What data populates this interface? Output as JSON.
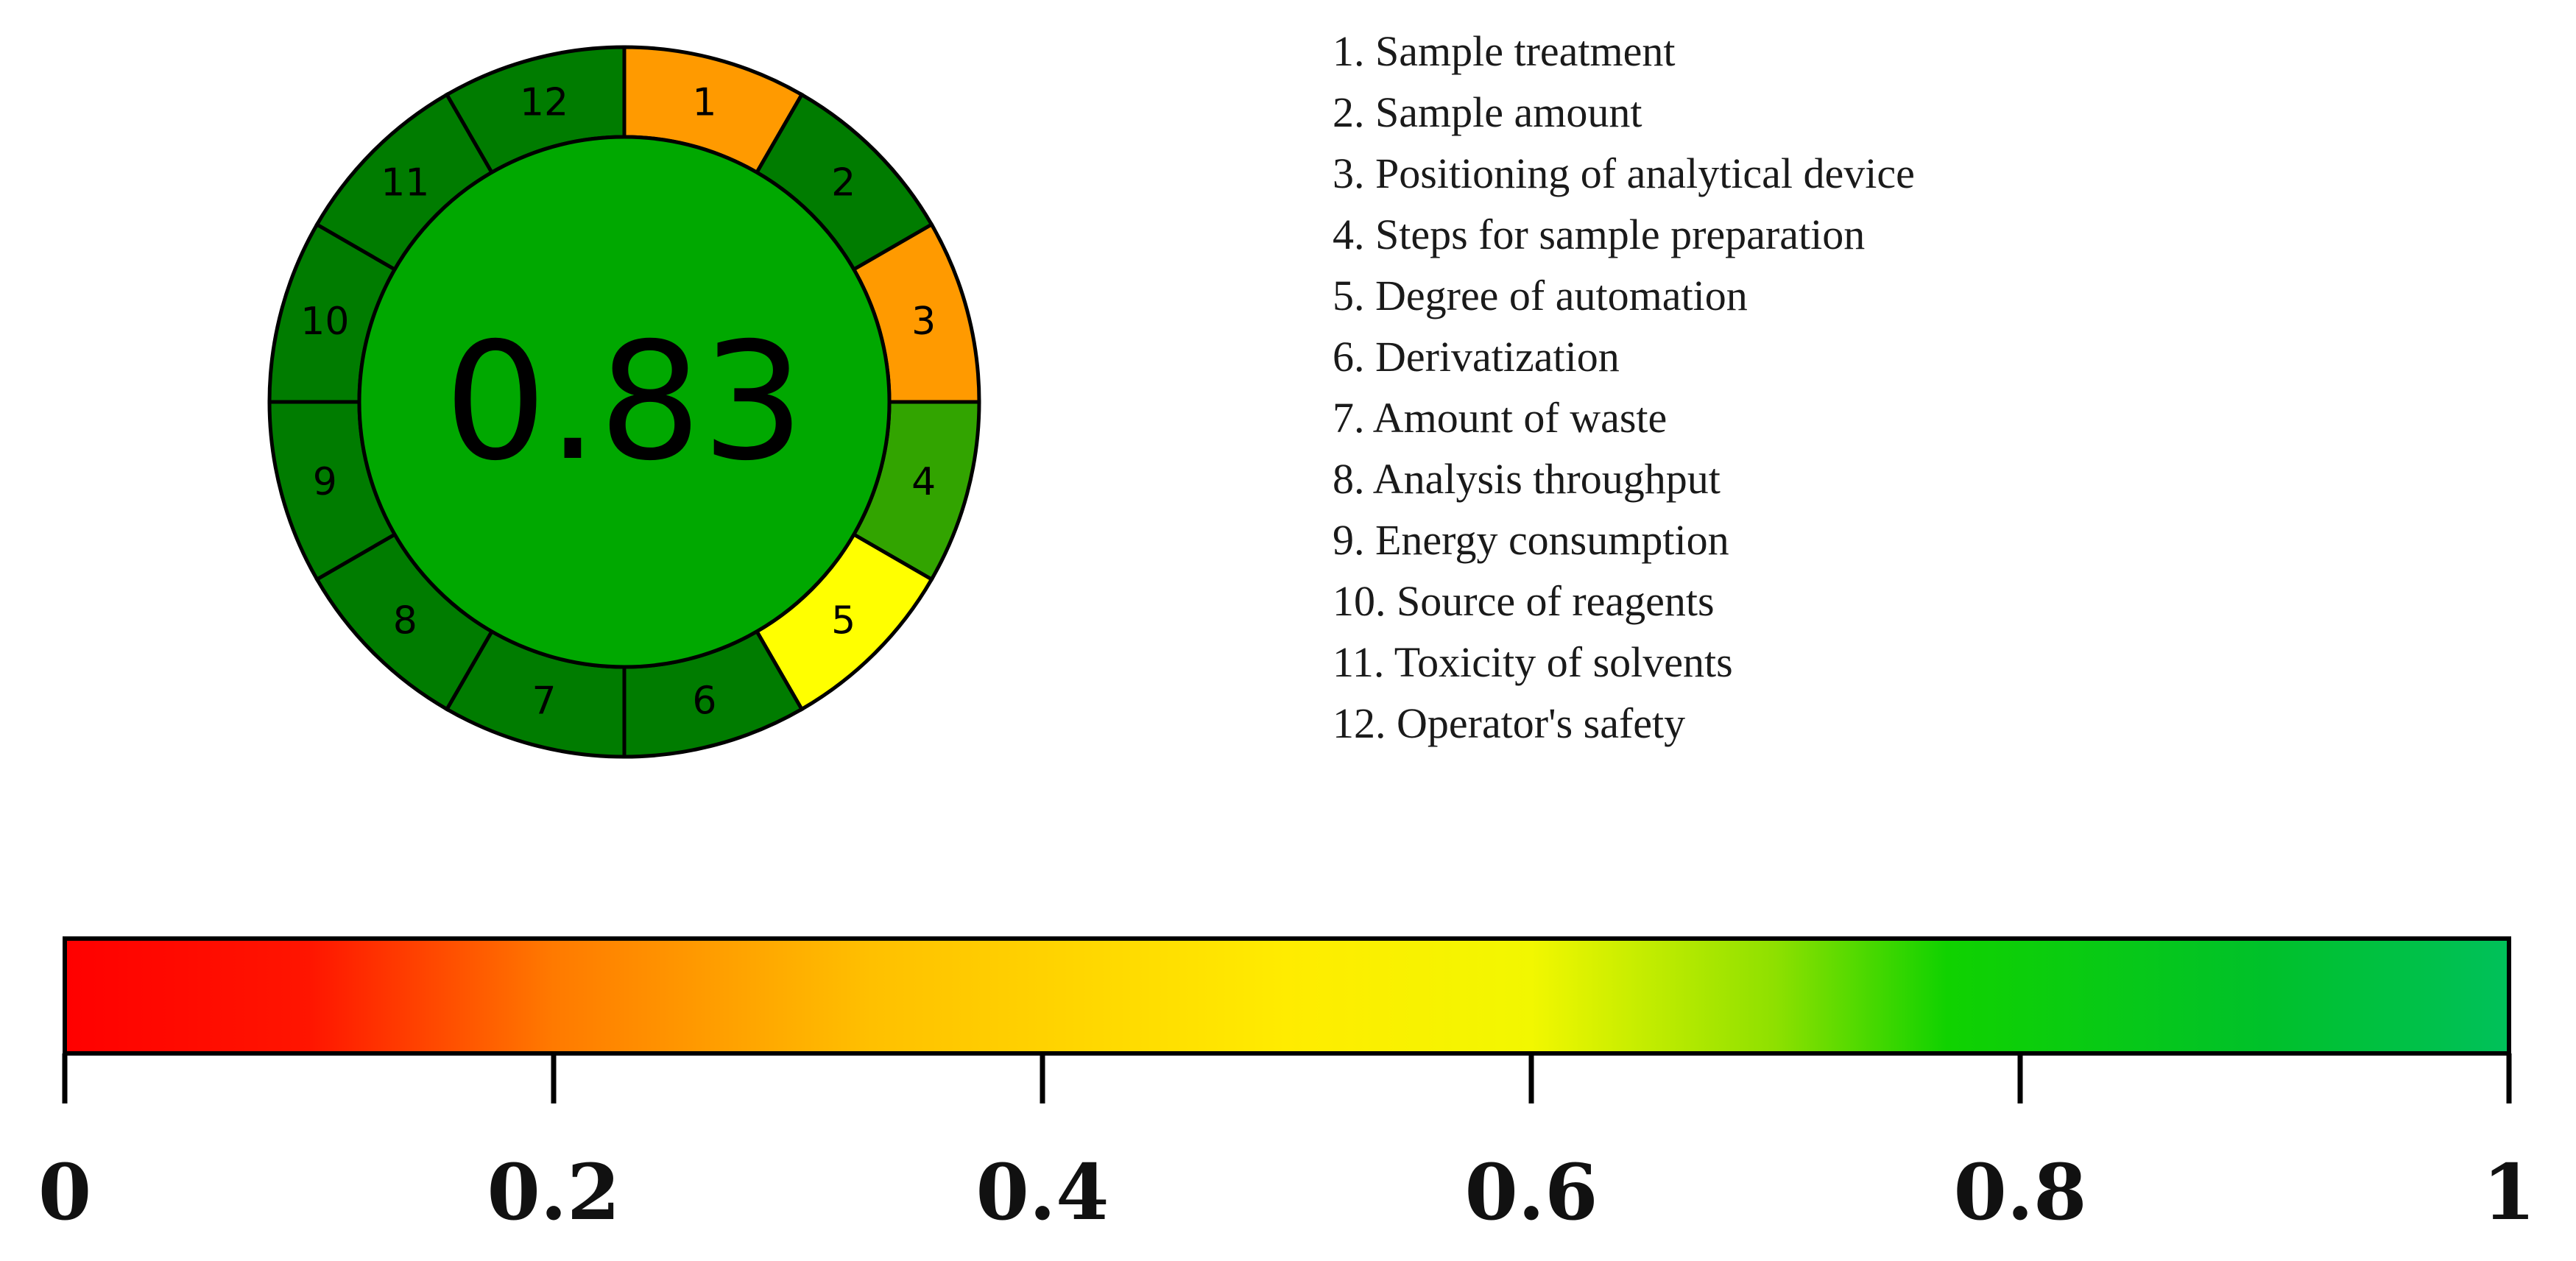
{
  "chart_data": {
    "type": "radial-score",
    "overall_score": "0.83",
    "segments": [
      {
        "number": "1",
        "criterion": "Sample treatment",
        "color": "#ff9a00"
      },
      {
        "number": "2",
        "criterion": "Sample amount",
        "color": "#007c00"
      },
      {
        "number": "3",
        "criterion": "Positioning of analytical device",
        "color": "#ff9a00"
      },
      {
        "number": "4",
        "criterion": "Steps for sample preparation",
        "color": "#32a400"
      },
      {
        "number": "5",
        "criterion": "Degree of automation",
        "color": "#ffff00"
      },
      {
        "number": "6",
        "criterion": "Derivatization",
        "color": "#007c00"
      },
      {
        "number": "7",
        "criterion": "Amount of waste",
        "color": "#007c00"
      },
      {
        "number": "8",
        "criterion": "Analysis throughput",
        "color": "#007c00"
      },
      {
        "number": "9",
        "criterion": "Energy consumption",
        "color": "#007c00"
      },
      {
        "number": "10",
        "criterion": "Source of reagents",
        "color": "#007c00"
      },
      {
        "number": "11",
        "criterion": "Toxicity of solvents",
        "color": "#007c00"
      },
      {
        "number": "12",
        "criterion": "Operator's safety",
        "color": "#007c00"
      }
    ],
    "center_color": "#00a800",
    "legend_items": [
      "1. Sample treatment",
      "2. Sample amount",
      "3. Positioning of analytical device",
      "4. Steps for sample preparation",
      "5. Degree of automation",
      "6. Derivatization",
      "7. Amount of waste",
      "8. Analysis throughput",
      "9. Energy consumption",
      "10. Source of reagents",
      "11. Toxicity of solvents",
      "12. Operator's safety"
    ],
    "color_scale": {
      "range": [
        0,
        1
      ],
      "ticks": [
        0,
        0.2,
        0.4,
        0.6,
        0.8,
        1
      ],
      "tick_labels": [
        "0",
        "0.2",
        "0.4",
        "0.6",
        "0.8",
        "1"
      ],
      "gradient_stops": [
        {
          "value": 0.0,
          "color": "#ff0000"
        },
        {
          "value": 0.1,
          "color": "#ff1500"
        },
        {
          "value": 0.2,
          "color": "#ff7a00"
        },
        {
          "value": 0.33,
          "color": "#ffc000"
        },
        {
          "value": 0.5,
          "color": "#ffec00"
        },
        {
          "value": 0.6,
          "color": "#f2f700"
        },
        {
          "value": 0.7,
          "color": "#8ee000"
        },
        {
          "value": 0.77,
          "color": "#10d200"
        },
        {
          "value": 0.9,
          "color": "#00c12a"
        },
        {
          "value": 1.0,
          "color": "#00c15a"
        }
      ]
    }
  }
}
